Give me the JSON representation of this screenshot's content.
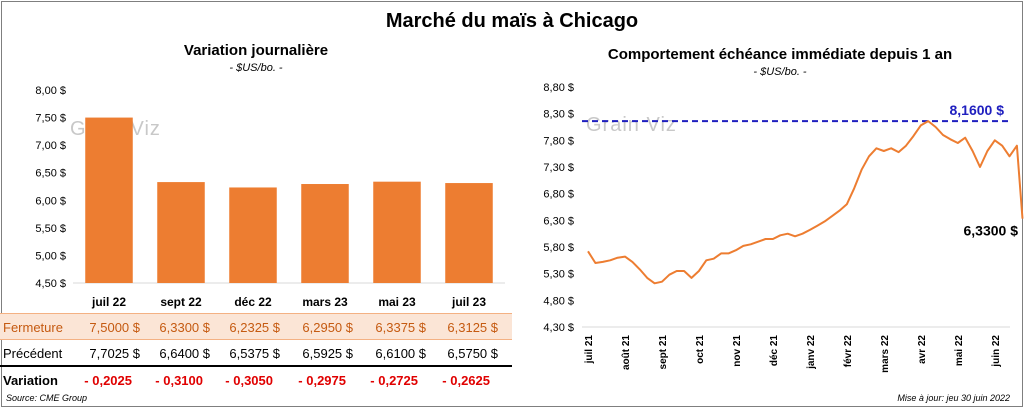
{
  "title": "Marché du maïs à Chicago",
  "watermark": "Grain Viz",
  "footer": {
    "source": "Source: CME Group",
    "updated": "Mise à jour: jeu 30 juin 2022"
  },
  "colors": {
    "bar": "#ed7d31",
    "line": "#ed7d31",
    "max_line": "#1f1fbf"
  },
  "chart_data": [
    {
      "type": "bar",
      "title": "Variation  journalière",
      "subtitle": "- $US/bo. -",
      "categories": [
        "juil 22",
        "sept 22",
        "déc 22",
        "mars 23",
        "mai 23",
        "juil 23"
      ],
      "values": [
        7.5,
        6.33,
        6.2325,
        6.295,
        6.3375,
        6.3125
      ],
      "ylim": [
        4.5,
        8.0
      ],
      "yticks": [
        "8,00 $",
        "7,50 $",
        "7,00 $",
        "6,50 $",
        "6,00 $",
        "5,50 $",
        "5,00 $",
        "4,50 $"
      ],
      "grid": false,
      "table": {
        "rows": [
          {
            "label": "Fermeture",
            "values": [
              "7,5000  $",
              "6,3300  $",
              "6,2325  $",
              "6,2950  $",
              "6,3375  $",
              "6,3125  $"
            ]
          },
          {
            "label": "Précédent",
            "values": [
              "7,7025  $",
              "6,6400  $",
              "6,5375  $",
              "6,5925  $",
              "6,6100  $",
              "6,5750  $"
            ]
          },
          {
            "label": "Variation",
            "values": [
              "- 0,2025",
              "- 0,3100",
              "- 0,3050",
              "- 0,2975",
              "- 0,2725",
              "- 0,2625"
            ]
          }
        ]
      }
    },
    {
      "type": "line",
      "title": "Comportement  échéance immédiate depuis 1 an",
      "subtitle": "- $US/bo. -",
      "xticks": [
        "juil 21",
        "août 21",
        "sept 21",
        "oct 21",
        "nov 21",
        "déc 21",
        "janv 22",
        "févr 22",
        "mars 22",
        "avr 22",
        "mai 22",
        "juin 22"
      ],
      "ylim": [
        4.3,
        8.8
      ],
      "yticks": [
        "8,80 $",
        "8,30 $",
        "7,80 $",
        "7,30 $",
        "6,80 $",
        "6,30 $",
        "5,80 $",
        "5,30 $",
        "4,80 $",
        "4,30 $"
      ],
      "grid": false,
      "max_label": "8,1600 $",
      "max_value": 8.16,
      "last_label": "6,3300 $",
      "series": [
        {
          "x": [
            0,
            0.2,
            0.4,
            0.6,
            0.8,
            1.0,
            1.2,
            1.4,
            1.6,
            1.8,
            2.0,
            2.2,
            2.4,
            2.6,
            2.8,
            3.0,
            3.2,
            3.4,
            3.6,
            3.8,
            4.0,
            4.2,
            4.4,
            4.6,
            4.8,
            5.0,
            5.2,
            5.4,
            5.6,
            5.8,
            6.0,
            6.2,
            6.4,
            6.6,
            6.8,
            7.0,
            7.2,
            7.4,
            7.6,
            7.8,
            8.0,
            8.2,
            8.4,
            8.6,
            8.8,
            9.0,
            9.2,
            9.4,
            9.6,
            9.8,
            10.0,
            10.2,
            10.4,
            10.6,
            10.8,
            11.0,
            11.2,
            11.4,
            11.6,
            11.75
          ],
          "y": [
            5.72,
            5.5,
            5.52,
            5.55,
            5.6,
            5.62,
            5.52,
            5.38,
            5.22,
            5.12,
            5.15,
            5.28,
            5.35,
            5.35,
            5.22,
            5.35,
            5.55,
            5.58,
            5.68,
            5.68,
            5.74,
            5.82,
            5.85,
            5.9,
            5.95,
            5.95,
            6.02,
            6.05,
            6.0,
            6.05,
            6.12,
            6.2,
            6.28,
            6.38,
            6.48,
            6.6,
            6.9,
            7.25,
            7.5,
            7.65,
            7.6,
            7.65,
            7.58,
            7.7,
            7.88,
            8.08,
            8.16,
            8.05,
            7.9,
            7.82,
            7.75,
            7.85,
            7.6,
            7.3,
            7.6,
            7.8,
            7.7,
            7.5,
            7.7,
            6.33
          ],
          "last_value": 6.33
        }
      ]
    }
  ]
}
